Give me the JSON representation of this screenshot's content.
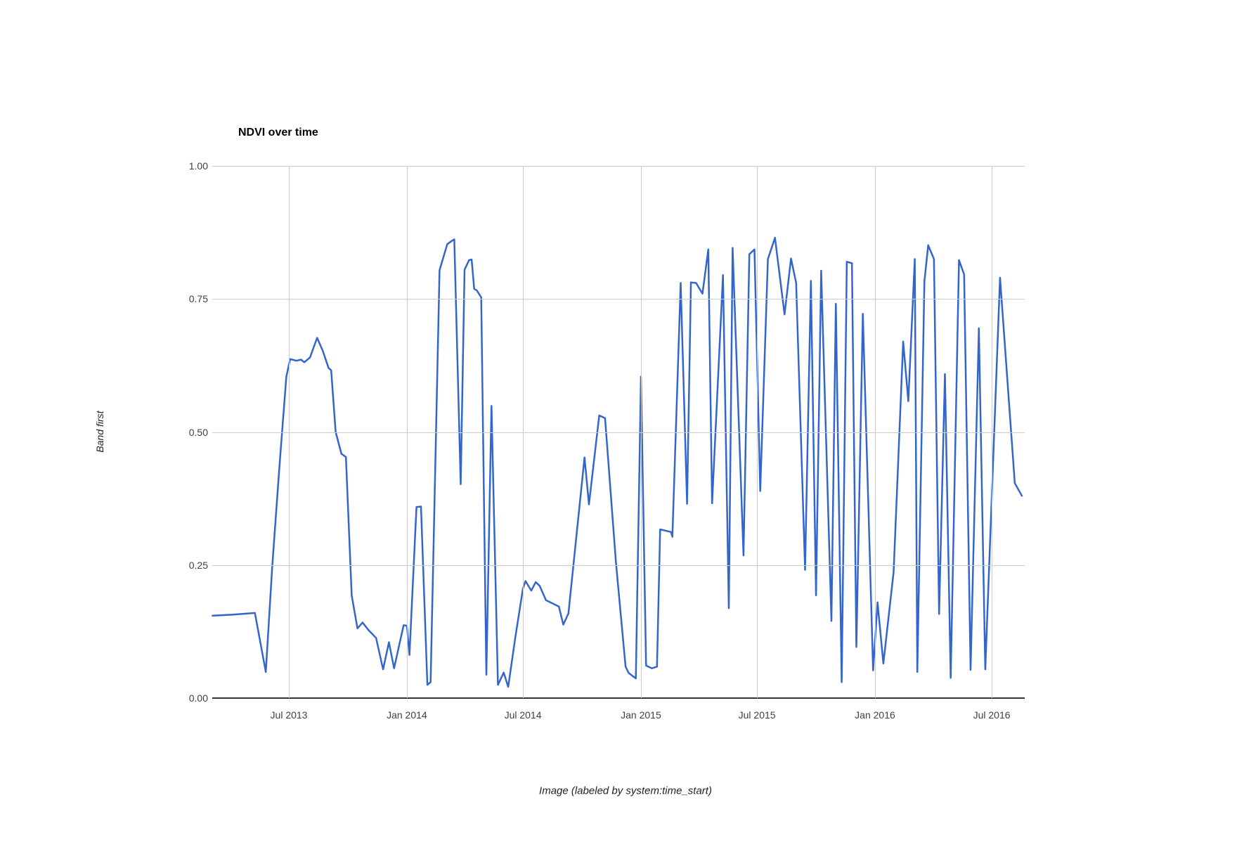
{
  "header": {
    "title": "NDVI over time"
  },
  "colors": {
    "line": "#3366cc",
    "gridline": "#cccccc",
    "axis_baseline": "#333333",
    "tick_text": "#404040",
    "axis_title_text": "#222222",
    "background": "#ffffff"
  },
  "chart_data": {
    "type": "line",
    "title": "NDVI over time",
    "xlabel": "Image (labeled by system:time_start)",
    "ylabel": "Band first",
    "ylim": [
      0.0,
      1.0
    ],
    "grid": true,
    "legend_position": "none",
    "y_ticks": [
      {
        "label": "0.00",
        "value": 0.0
      },
      {
        "label": "0.25",
        "value": 0.25
      },
      {
        "label": "0.50",
        "value": 0.5
      },
      {
        "label": "0.75",
        "value": 0.75
      },
      {
        "label": "1.00",
        "value": 1.0
      }
    ],
    "x_ticks": [
      {
        "label": "Jul 2013",
        "date": "2013-07-01"
      },
      {
        "label": "Jan 2014",
        "date": "2014-01-01"
      },
      {
        "label": "Jul 2014",
        "date": "2014-07-01"
      },
      {
        "label": "Jan 2015",
        "date": "2015-01-01"
      },
      {
        "label": "Jul 2015",
        "date": "2015-07-01"
      },
      {
        "label": "Jan 2016",
        "date": "2016-01-01"
      },
      {
        "label": "Jul 2016",
        "date": "2016-07-01"
      }
    ],
    "time_map": {
      "t0": "2013-07-01",
      "t1": "2016-07-01",
      "f0": 0.0943,
      "f1": 0.9594
    },
    "series": [
      {
        "name": "first",
        "color": "#3366cc",
        "points": [
          [
            "2013-03-04",
            0.155
          ],
          [
            "2013-04-05",
            0.157
          ],
          [
            "2013-05-09",
            0.16
          ],
          [
            "2013-05-26",
            0.049
          ],
          [
            "2013-06-05",
            0.246
          ],
          [
            "2013-06-16",
            0.43
          ],
          [
            "2013-06-27",
            0.604
          ],
          [
            "2013-07-03",
            0.637
          ],
          [
            "2013-07-13",
            0.634
          ],
          [
            "2013-07-20",
            0.636
          ],
          [
            "2013-07-25",
            0.631
          ],
          [
            "2013-08-03",
            0.64
          ],
          [
            "2013-08-14",
            0.677
          ],
          [
            "2013-08-23",
            0.652
          ],
          [
            "2013-09-01",
            0.62
          ],
          [
            "2013-09-05",
            0.616
          ],
          [
            "2013-09-12",
            0.5
          ],
          [
            "2013-09-21",
            0.459
          ],
          [
            "2013-09-28",
            0.453
          ],
          [
            "2013-10-07",
            0.193
          ],
          [
            "2013-10-16",
            0.131
          ],
          [
            "2013-10-24",
            0.142
          ],
          [
            "2013-11-02",
            0.128
          ],
          [
            "2013-11-14",
            0.113
          ],
          [
            "2013-11-25",
            0.054
          ],
          [
            "2013-12-04",
            0.105
          ],
          [
            "2013-12-12",
            0.056
          ],
          [
            "2013-12-27",
            0.137
          ],
          [
            "2014-01-01",
            0.136
          ],
          [
            "2014-01-05",
            0.081
          ],
          [
            "2014-01-16",
            0.359
          ],
          [
            "2014-01-23",
            0.36
          ],
          [
            "2014-02-02",
            0.025
          ],
          [
            "2014-02-07",
            0.03
          ],
          [
            "2014-02-21",
            0.804
          ],
          [
            "2014-03-05",
            0.853
          ],
          [
            "2014-03-12",
            0.859
          ],
          [
            "2014-03-16",
            0.862
          ],
          [
            "2014-03-26",
            0.402
          ],
          [
            "2014-04-01",
            0.805
          ],
          [
            "2014-04-08",
            0.823
          ],
          [
            "2014-04-12",
            0.824
          ],
          [
            "2014-04-16",
            0.769
          ],
          [
            "2014-04-20",
            0.766
          ],
          [
            "2014-04-27",
            0.753
          ],
          [
            "2014-05-05",
            0.044
          ],
          [
            "2014-05-13",
            0.549
          ],
          [
            "2014-05-23",
            0.025
          ],
          [
            "2014-06-01",
            0.048
          ],
          [
            "2014-06-08",
            0.021
          ],
          [
            "2014-06-19",
            0.113
          ],
          [
            "2014-07-01",
            0.206
          ],
          [
            "2014-07-05",
            0.22
          ],
          [
            "2014-07-14",
            0.202
          ],
          [
            "2014-07-21",
            0.218
          ],
          [
            "2014-07-27",
            0.211
          ],
          [
            "2014-08-06",
            0.184
          ],
          [
            "2014-08-16",
            0.178
          ],
          [
            "2014-08-26",
            0.172
          ],
          [
            "2014-09-02",
            0.138
          ],
          [
            "2014-09-10",
            0.159
          ],
          [
            "2014-09-22",
            0.3
          ],
          [
            "2014-10-05",
            0.452
          ],
          [
            "2014-10-12",
            0.364
          ],
          [
            "2014-10-28",
            0.531
          ],
          [
            "2014-11-06",
            0.526
          ],
          [
            "2014-11-23",
            0.255
          ],
          [
            "2014-12-08",
            0.059
          ],
          [
            "2014-12-13",
            0.047
          ],
          [
            "2014-12-24",
            0.037
          ],
          [
            "2015-01-01",
            0.604
          ],
          [
            "2015-01-09",
            0.061
          ],
          [
            "2015-01-18",
            0.056
          ],
          [
            "2015-01-26",
            0.059
          ],
          [
            "2015-01-31",
            0.317
          ],
          [
            "2015-02-17",
            0.312
          ],
          [
            "2015-02-19",
            0.303
          ],
          [
            "2015-03-04",
            0.78
          ],
          [
            "2015-03-14",
            0.365
          ],
          [
            "2015-03-20",
            0.781
          ],
          [
            "2015-03-28",
            0.78
          ],
          [
            "2015-04-07",
            0.76
          ],
          [
            "2015-04-16",
            0.843
          ],
          [
            "2015-04-22",
            0.366
          ],
          [
            "2015-05-09",
            0.795
          ],
          [
            "2015-05-18",
            0.169
          ],
          [
            "2015-05-24",
            0.846
          ],
          [
            "2015-06-10",
            0.268
          ],
          [
            "2015-06-19",
            0.834
          ],
          [
            "2015-06-27",
            0.843
          ],
          [
            "2015-07-06",
            0.389
          ],
          [
            "2015-07-18",
            0.825
          ],
          [
            "2015-07-29",
            0.865
          ],
          [
            "2015-08-13",
            0.721
          ],
          [
            "2015-08-23",
            0.826
          ],
          [
            "2015-08-31",
            0.78
          ],
          [
            "2015-09-14",
            0.241
          ],
          [
            "2015-09-23",
            0.784
          ],
          [
            "2015-10-01",
            0.193
          ],
          [
            "2015-10-09",
            0.803
          ],
          [
            "2015-10-25",
            0.145
          ],
          [
            "2015-11-01",
            0.741
          ],
          [
            "2015-11-10",
            0.03
          ],
          [
            "2015-11-18",
            0.82
          ],
          [
            "2015-11-26",
            0.817
          ],
          [
            "2015-12-03",
            0.096
          ],
          [
            "2015-12-13",
            0.722
          ],
          [
            "2015-12-29",
            0.052
          ],
          [
            "2016-01-05",
            0.18
          ],
          [
            "2016-01-14",
            0.065
          ],
          [
            "2016-01-30",
            0.237
          ],
          [
            "2016-02-14",
            0.67
          ],
          [
            "2016-02-22",
            0.558
          ],
          [
            "2016-03-03",
            0.825
          ],
          [
            "2016-03-07",
            0.049
          ],
          [
            "2016-03-18",
            0.783
          ],
          [
            "2016-03-24",
            0.851
          ],
          [
            "2016-04-02",
            0.825
          ],
          [
            "2016-04-10",
            0.158
          ],
          [
            "2016-04-19",
            0.609
          ],
          [
            "2016-04-28",
            0.038
          ],
          [
            "2016-05-11",
            0.823
          ],
          [
            "2016-05-19",
            0.796
          ],
          [
            "2016-05-29",
            0.053
          ],
          [
            "2016-06-11",
            0.695
          ],
          [
            "2016-06-21",
            0.054
          ],
          [
            "2016-07-14",
            0.79
          ],
          [
            "2016-08-06",
            0.404
          ],
          [
            "2016-08-17",
            0.38
          ]
        ]
      }
    ]
  }
}
